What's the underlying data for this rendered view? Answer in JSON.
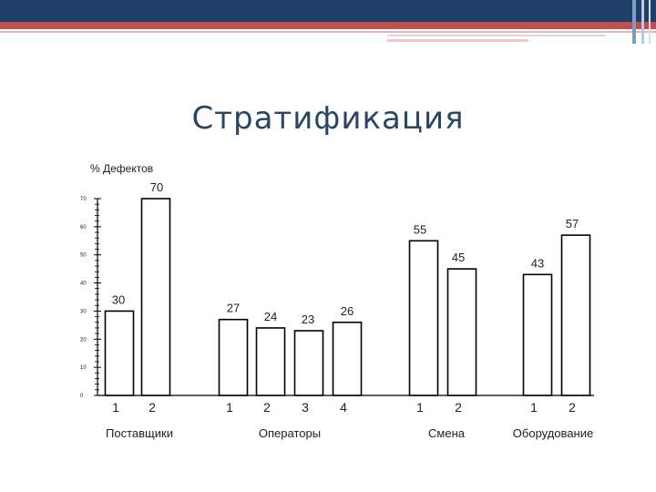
{
  "slide": {
    "title": "Стратификация"
  },
  "colors": {
    "header_blue": "#1f3f6b",
    "header_red": "#c0504d",
    "title": "#2a4666"
  },
  "chart_data": {
    "type": "bar",
    "ylabel": "% Дефектов",
    "ylim": [
      0,
      70
    ],
    "yticks": [
      0,
      10,
      20,
      30,
      40,
      50,
      60,
      70
    ],
    "groups": [
      {
        "name": "Поставщики",
        "categories": [
          "1",
          "2"
        ],
        "values": [
          30,
          70
        ]
      },
      {
        "name": "Операторы",
        "categories": [
          "1",
          "2",
          "3",
          "4"
        ],
        "values": [
          27,
          24,
          23,
          26
        ]
      },
      {
        "name": "Смена",
        "categories": [
          "1",
          "2"
        ],
        "values": [
          55,
          45
        ]
      },
      {
        "name": "Оборудование",
        "categories": [
          "1",
          "2"
        ],
        "values": [
          43,
          57
        ]
      }
    ]
  }
}
